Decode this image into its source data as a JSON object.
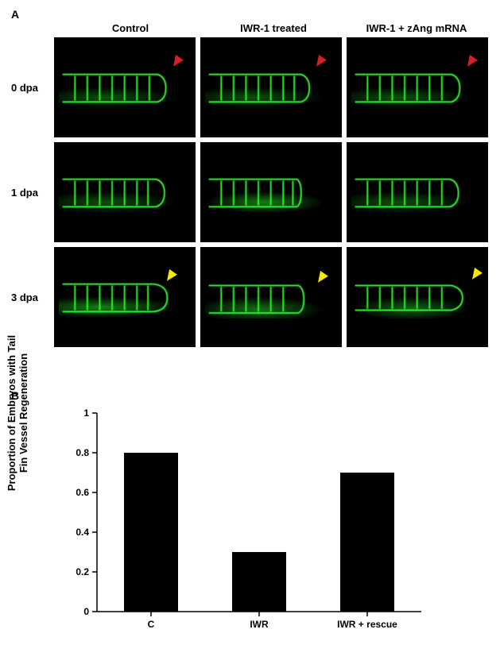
{
  "panelA": {
    "label": "A",
    "columns": [
      "Control",
      "IWR-1 treated",
      "IWR-1 + zAng mRNA"
    ],
    "rows": [
      "0 dpa",
      "1 dpa",
      "3 dpa"
    ],
    "arrows": {
      "row0": {
        "color": "#d62027",
        "name": "red-arrow"
      },
      "row2": {
        "color": "#f6e800",
        "name": "yellow-arrow"
      }
    }
  },
  "panelB": {
    "label": "B",
    "chart": {
      "type": "bar",
      "categories": [
        "C",
        "IWR",
        "IWR + rescue"
      ],
      "values": [
        0.8,
        0.3,
        0.7
      ],
      "bar_color": "#000000",
      "ylim": [
        0,
        1
      ],
      "ytick_step": 0.2,
      "yticks": [
        "0",
        "0.2",
        "0.4",
        "0.6",
        "0.8",
        "1"
      ],
      "ylabel_line1": "Proportion of Embryos with Tail",
      "ylabel_line2": "Fin Vessel Regeneration",
      "axis_color": "#000000",
      "background_color": "#ffffff",
      "bar_width": 0.5,
      "tick_fontsize": 12,
      "tick_fontweight": "bold",
      "label_fontsize": 13,
      "label_fontweight": "bold"
    }
  }
}
